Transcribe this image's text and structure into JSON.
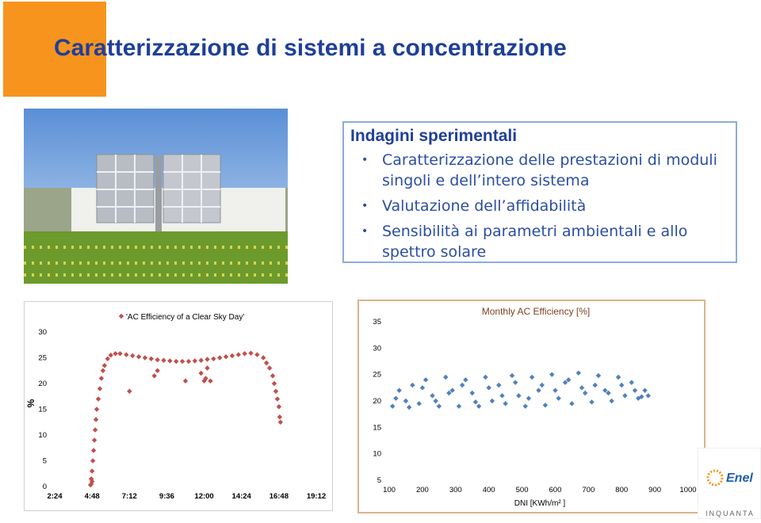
{
  "title": "Caratterizzazione di sistemi a concentrazione",
  "box": {
    "heading": "Indagini sperimentali",
    "bullets": [
      "Caratterizzazione delle prestazioni di moduli singoli e dell’intero sistema",
      "Valutazione dell’affidabilità",
      "Sensibilità ai parametri ambientali e allo spettro solare"
    ]
  },
  "logo": {
    "brand": "Enel",
    "tagline": "INQUANTA"
  },
  "chart_data": [
    {
      "type": "scatter",
      "ylabel": "%",
      "series": [
        {
          "name": "'AC Efficiency of a Clear Sky Day'",
          "color": "#c0504d",
          "x": [
            4.7,
            4.75,
            4.8,
            4.85,
            4.9,
            4.95,
            5.0,
            5.05,
            5.1,
            5.2,
            5.3,
            5.4,
            5.5,
            5.6,
            5.8,
            6.0,
            6.3,
            6.6,
            7.0,
            7.4,
            7.8,
            8.2,
            8.6,
            9.0,
            9.4,
            9.8,
            10.2,
            10.6,
            11.0,
            11.4,
            11.8,
            12.2,
            12.6,
            13.0,
            13.4,
            13.8,
            14.2,
            14.6,
            15.0,
            15.4,
            15.8,
            16.0,
            16.2,
            16.4,
            16.5,
            16.6,
            16.7,
            16.8,
            16.85,
            16.9,
            7.2,
            8.8,
            9.0,
            10.8,
            11.8,
            12.0,
            12.1,
            12.2,
            12.4,
            4.75,
            4.8
          ],
          "values": [
            0.3,
            1.5,
            3,
            5,
            7,
            9,
            11,
            13,
            15,
            17,
            19,
            21,
            22.5,
            23.5,
            24.8,
            25.5,
            25.8,
            25.8,
            25.6,
            25.4,
            25.2,
            25,
            24.8,
            24.6,
            24.5,
            24.4,
            24.3,
            24.3,
            24.3,
            24.4,
            24.5,
            24.7,
            24.8,
            25,
            25.2,
            25.4,
            25.6,
            25.8,
            25.9,
            25.6,
            25,
            24,
            23,
            21.5,
            20,
            18.5,
            17,
            15.5,
            13.5,
            12.5,
            18.5,
            21.5,
            22.5,
            20.5,
            22,
            20.5,
            21,
            23,
            20.5,
            0.5,
            1.0
          ]
        }
      ],
      "xlim": [
        2.4,
        19.2
      ],
      "xticks": [
        {
          "value": 2.4,
          "label": "2:24"
        },
        {
          "value": 4.8,
          "label": "4:48"
        },
        {
          "value": 7.2,
          "label": "7:12"
        },
        {
          "value": 9.6,
          "label": "9:36"
        },
        {
          "value": 12,
          "label": "12:00"
        },
        {
          "value": 14.4,
          "label": "14:24"
        },
        {
          "value": 16.8,
          "label": "16:48"
        },
        {
          "value": 19.2,
          "label": "19:12"
        }
      ],
      "ylim": [
        0,
        34
      ],
      "yticks": [
        0,
        5,
        10,
        15,
        20,
        25,
        30
      ],
      "legend": "top"
    },
    {
      "type": "scatter",
      "title": "Monthly AC Efficiency [%]",
      "xlabel": "DNI [KWh/m² ]",
      "series": [
        {
          "name": "Monthly AC Efficiency",
          "color": "#4f81bd",
          "x": [
            110,
            130,
            150,
            170,
            190,
            210,
            230,
            250,
            270,
            290,
            310,
            330,
            350,
            370,
            390,
            410,
            430,
            450,
            470,
            490,
            510,
            530,
            550,
            570,
            590,
            610,
            630,
            650,
            670,
            690,
            710,
            730,
            750,
            770,
            790,
            810,
            830,
            850,
            870,
            880,
            120,
            160,
            200,
            240,
            280,
            320,
            360,
            400,
            440,
            480,
            520,
            560,
            600,
            640,
            680,
            720,
            760,
            800,
            840,
            860
          ],
          "values": [
            19,
            22,
            20,
            23,
            19.5,
            24,
            21,
            19,
            24.5,
            22,
            19,
            24,
            21.5,
            19,
            24.5,
            20,
            23,
            19.5,
            24.8,
            21,
            19,
            24.5,
            22,
            19.2,
            25,
            20.5,
            23.5,
            19.5,
            25.3,
            21.5,
            19.8,
            24.8,
            22,
            20,
            24.5,
            21,
            23.5,
            20.5,
            22,
            21,
            20.5,
            18.8,
            22.5,
            20,
            21.5,
            23,
            19.8,
            22.5,
            21,
            23.5,
            20.5,
            23,
            22,
            24,
            22.5,
            23,
            21.5,
            23,
            22,
            20.8
          ]
        }
      ],
      "xlim": [
        100,
        1000
      ],
      "xticks": [
        100,
        200,
        300,
        400,
        500,
        600,
        700,
        800,
        900,
        1000
      ],
      "ylim": [
        5,
        35
      ],
      "yticks": [
        5,
        10,
        15,
        20,
        25,
        30,
        35
      ]
    }
  ]
}
